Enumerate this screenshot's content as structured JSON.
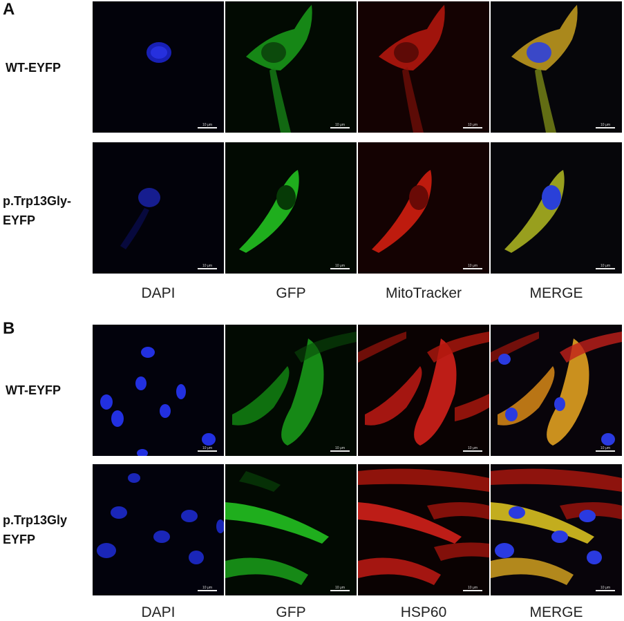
{
  "panels": {
    "A": {
      "letter": "A",
      "rows": [
        "WT-EYFP",
        "p.Trp13Gly-EYFP"
      ],
      "row_labels_lines": [
        [
          "WT-EYFP"
        ],
        [
          "p.Trp13Gly-",
          "EYFP"
        ]
      ],
      "columns": [
        "DAPI",
        "GFP",
        "MitoTracker",
        "MERGE"
      ]
    },
    "B": {
      "letter": "B",
      "rows": [
        "WT-EYFP",
        "p.Trp13Gly EYFP"
      ],
      "row_labels_lines": [
        [
          "WT-EYFP"
        ],
        [
          "p.Trp13Gly",
          "EYFP"
        ]
      ],
      "columns": [
        "DAPI",
        "GFP",
        "HSP60",
        "MERGE"
      ]
    }
  },
  "scale_bar_text": "10 μm",
  "channel_colors": {
    "dapi": "#1f2fff",
    "gfp": "#2ee82a",
    "red": "#ff2a1a",
    "merge": "#e0c030"
  }
}
